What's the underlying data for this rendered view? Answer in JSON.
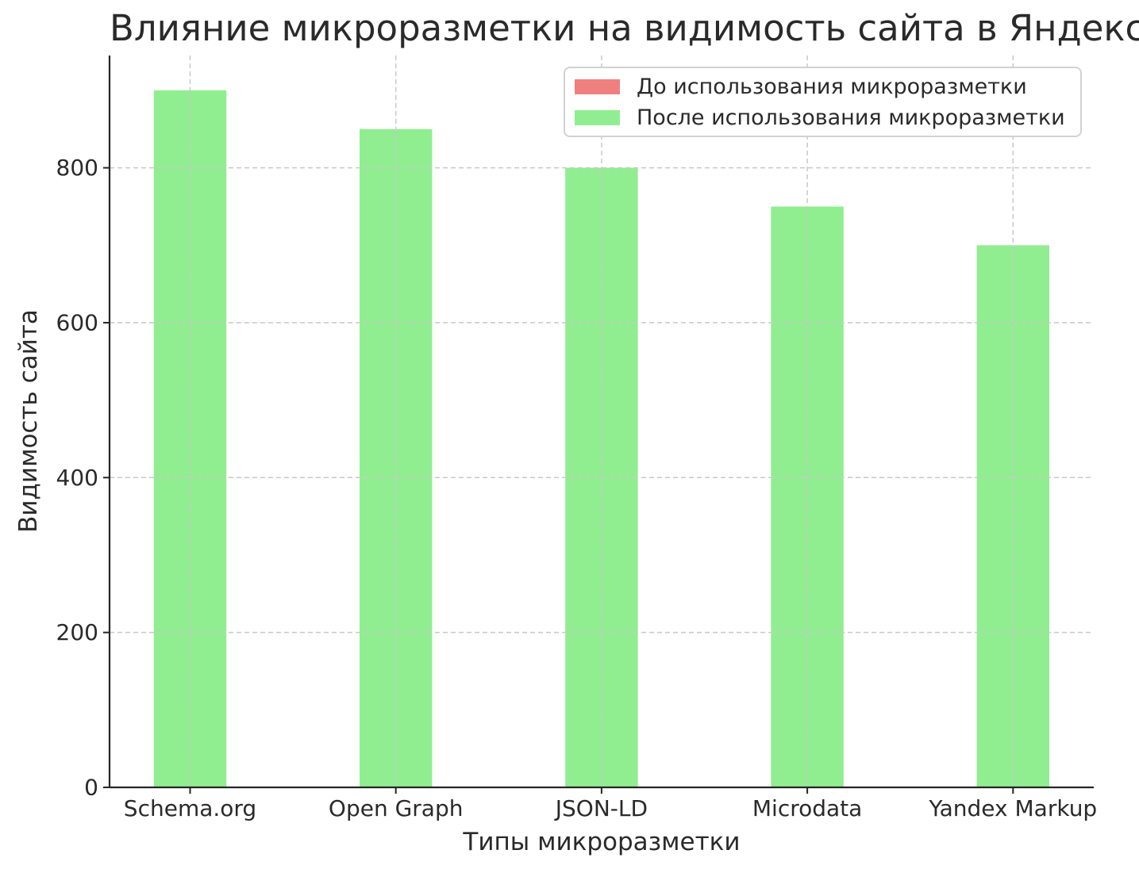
{
  "chart_data": {
    "type": "bar",
    "title": "Влияние микроразметки на видимость сайта в Яндексе",
    "xlabel": "Типы микроразметки",
    "ylabel": "Видимость сайта",
    "categories": [
      "Schema.org",
      "Open Graph",
      "JSON-LD",
      "Microdata",
      "Yandex Markup"
    ],
    "series": [
      {
        "name": "До использования микроразметки",
        "color": "#f08080",
        "values": [],
        "bars_visible": false
      },
      {
        "name": "После использования микроразметки",
        "color": "#90ee90",
        "values": [
          900,
          850,
          800,
          750,
          700
        ],
        "bars_visible": true
      }
    ],
    "yticks": [
      0,
      200,
      400,
      600,
      800
    ],
    "ylim": [
      0,
      945
    ],
    "grid": {
      "style": "dashed",
      "color": "#c9c9c9",
      "horizontal": true,
      "vertical": true,
      "above_bars": true
    },
    "legend": {
      "position": "upper right",
      "border_color": "#d2d2d2",
      "background": "#ffffff"
    },
    "axis_color": "#262626",
    "text_color": "#2a2a2a"
  }
}
